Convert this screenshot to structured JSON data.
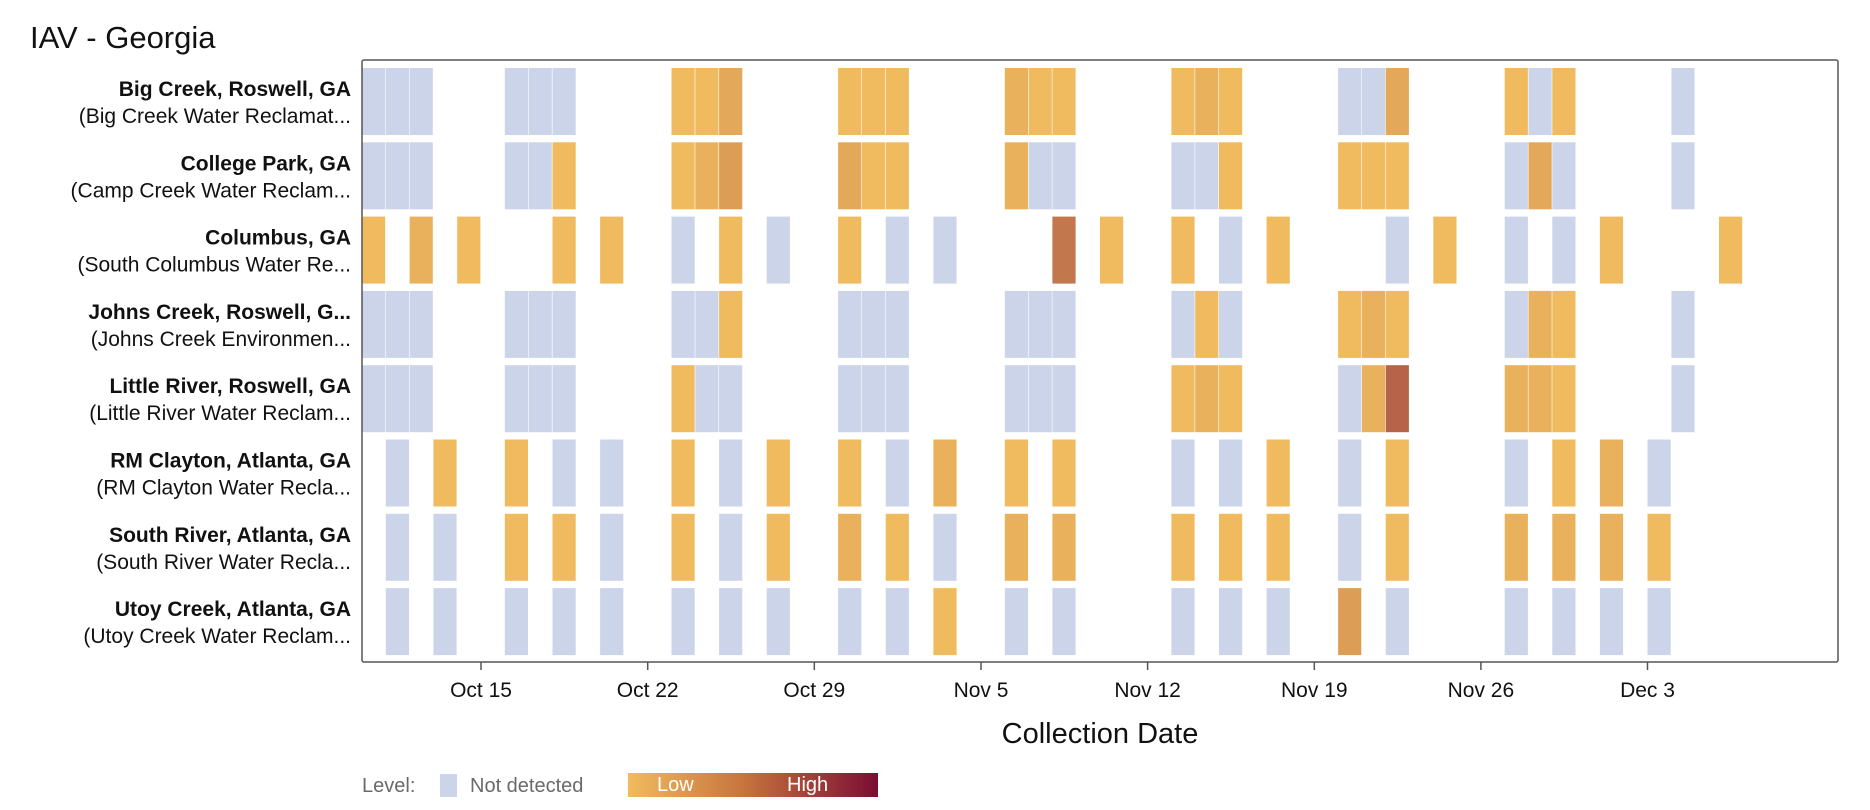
{
  "title": "IAV - Georgia",
  "legend": {
    "label": "Level:",
    "not_detected": "Not detected",
    "low": "Low",
    "high": "High"
  },
  "colors": {
    "not_detected": "#ccd4ea",
    "low": "#f0bb5e",
    "high": "#7a0d33",
    "frame": "#555555"
  },
  "chart_data": {
    "type": "heatmap",
    "title": "IAV - Georgia",
    "xlabel": "Collection Date",
    "ylabel": "",
    "x_range": [
      "2023-10-10",
      "2023-12-11"
    ],
    "x_ticks": [
      {
        "date": "2023-10-15",
        "label": "Oct 15"
      },
      {
        "date": "2023-10-22",
        "label": "Oct 22"
      },
      {
        "date": "2023-10-29",
        "label": "Oct 29"
      },
      {
        "date": "2023-11-05",
        "label": "Nov 5"
      },
      {
        "date": "2023-11-12",
        "label": "Nov 12"
      },
      {
        "date": "2023-11-19",
        "label": "Nov 19"
      },
      {
        "date": "2023-11-26",
        "label": "Nov 26"
      },
      {
        "date": "2023-12-03",
        "label": "Dec 3"
      }
    ],
    "level_scale": {
      "not_detected": "Not detected",
      "low": "Low",
      "high": "High"
    },
    "sites": [
      {
        "name": "Big Creek, Roswell, GA",
        "plant": "(Big Creek Water Reclamat...",
        "samples": [
          [
            "2023-10-10",
            null
          ],
          [
            "2023-10-11",
            null
          ],
          [
            "2023-10-12",
            null
          ],
          [
            "2023-10-16",
            null
          ],
          [
            "2023-10-17",
            null
          ],
          [
            "2023-10-18",
            null
          ],
          [
            "2023-10-23",
            0.1
          ],
          [
            "2023-10-24",
            0.1
          ],
          [
            "2023-10-25",
            0.2
          ],
          [
            "2023-10-30",
            0.1
          ],
          [
            "2023-10-31",
            0.1
          ],
          [
            "2023-11-01",
            0.1
          ],
          [
            "2023-11-06",
            0.15
          ],
          [
            "2023-11-07",
            0.1
          ],
          [
            "2023-11-08",
            0.1
          ],
          [
            "2023-11-13",
            0.1
          ],
          [
            "2023-11-14",
            0.15
          ],
          [
            "2023-11-15",
            0.1
          ],
          [
            "2023-11-20",
            null
          ],
          [
            "2023-11-21",
            null
          ],
          [
            "2023-11-22",
            0.2
          ],
          [
            "2023-11-27",
            0.1
          ],
          [
            "2023-11-28",
            null
          ],
          [
            "2023-11-29",
            0.1
          ],
          [
            "2023-12-04",
            null
          ]
        ]
      },
      {
        "name": "College Park, GA",
        "plant": "(Camp Creek Water Reclam...",
        "samples": [
          [
            "2023-10-10",
            null
          ],
          [
            "2023-10-11",
            null
          ],
          [
            "2023-10-12",
            null
          ],
          [
            "2023-10-16",
            null
          ],
          [
            "2023-10-17",
            null
          ],
          [
            "2023-10-18",
            0.1
          ],
          [
            "2023-10-23",
            0.1
          ],
          [
            "2023-10-24",
            0.15
          ],
          [
            "2023-10-25",
            0.25
          ],
          [
            "2023-10-30",
            0.2
          ],
          [
            "2023-10-31",
            0.1
          ],
          [
            "2023-11-01",
            0.1
          ],
          [
            "2023-11-06",
            0.15
          ],
          [
            "2023-11-07",
            null
          ],
          [
            "2023-11-08",
            null
          ],
          [
            "2023-11-13",
            null
          ],
          [
            "2023-11-14",
            null
          ],
          [
            "2023-11-15",
            0.1
          ],
          [
            "2023-11-20",
            0.1
          ],
          [
            "2023-11-21",
            0.1
          ],
          [
            "2023-11-22",
            0.1
          ],
          [
            "2023-11-27",
            null
          ],
          [
            "2023-11-28",
            0.2
          ],
          [
            "2023-11-29",
            null
          ],
          [
            "2023-12-04",
            null
          ]
        ]
      },
      {
        "name": "Columbus, GA",
        "plant": "(South Columbus Water Re...",
        "samples": [
          [
            "2023-10-10",
            0.1
          ],
          [
            "2023-10-12",
            0.15
          ],
          [
            "2023-10-14",
            0.1
          ],
          [
            "2023-10-18",
            0.1
          ],
          [
            "2023-10-20",
            0.1
          ],
          [
            "2023-10-23",
            null
          ],
          [
            "2023-10-25",
            0.1
          ],
          [
            "2023-10-27",
            null
          ],
          [
            "2023-10-30",
            0.1
          ],
          [
            "2023-11-01",
            null
          ],
          [
            "2023-11-03",
            null
          ],
          [
            "2023-11-08",
            0.45
          ],
          [
            "2023-11-10",
            0.1
          ],
          [
            "2023-11-13",
            0.1
          ],
          [
            "2023-11-15",
            null
          ],
          [
            "2023-11-17",
            0.1
          ],
          [
            "2023-11-22",
            null
          ],
          [
            "2023-11-24",
            0.1
          ],
          [
            "2023-11-27",
            null
          ],
          [
            "2023-11-29",
            null
          ],
          [
            "2023-12-01",
            0.1
          ],
          [
            "2023-12-06",
            0.1
          ]
        ]
      },
      {
        "name": "Johns Creek, Roswell, G...",
        "plant": "(Johns Creek Environmen...",
        "samples": [
          [
            "2023-10-10",
            null
          ],
          [
            "2023-10-11",
            null
          ],
          [
            "2023-10-12",
            null
          ],
          [
            "2023-10-16",
            null
          ],
          [
            "2023-10-17",
            null
          ],
          [
            "2023-10-18",
            null
          ],
          [
            "2023-10-23",
            null
          ],
          [
            "2023-10-24",
            null
          ],
          [
            "2023-10-25",
            0.1
          ],
          [
            "2023-10-30",
            null
          ],
          [
            "2023-10-31",
            null
          ],
          [
            "2023-11-01",
            null
          ],
          [
            "2023-11-06",
            null
          ],
          [
            "2023-11-07",
            null
          ],
          [
            "2023-11-08",
            null
          ],
          [
            "2023-11-13",
            null
          ],
          [
            "2023-11-14",
            0.1
          ],
          [
            "2023-11-15",
            null
          ],
          [
            "2023-11-20",
            0.1
          ],
          [
            "2023-11-21",
            0.15
          ],
          [
            "2023-11-22",
            0.1
          ],
          [
            "2023-11-27",
            null
          ],
          [
            "2023-11-28",
            0.15
          ],
          [
            "2023-11-29",
            0.1
          ],
          [
            "2023-12-04",
            null
          ]
        ]
      },
      {
        "name": "Little River, Roswell, GA",
        "plant": "(Little River Water Reclam...",
        "samples": [
          [
            "2023-10-10",
            null
          ],
          [
            "2023-10-11",
            null
          ],
          [
            "2023-10-12",
            null
          ],
          [
            "2023-10-16",
            null
          ],
          [
            "2023-10-17",
            null
          ],
          [
            "2023-10-18",
            null
          ],
          [
            "2023-10-23",
            0.1
          ],
          [
            "2023-10-24",
            null
          ],
          [
            "2023-10-25",
            null
          ],
          [
            "2023-10-30",
            null
          ],
          [
            "2023-10-31",
            null
          ],
          [
            "2023-11-01",
            null
          ],
          [
            "2023-11-06",
            null
          ],
          [
            "2023-11-07",
            null
          ],
          [
            "2023-11-08",
            null
          ],
          [
            "2023-11-13",
            0.1
          ],
          [
            "2023-11-14",
            0.15
          ],
          [
            "2023-11-15",
            0.1
          ],
          [
            "2023-11-20",
            null
          ],
          [
            "2023-11-21",
            0.15
          ],
          [
            "2023-11-22",
            0.55
          ],
          [
            "2023-11-27",
            0.15
          ],
          [
            "2023-11-28",
            0.15
          ],
          [
            "2023-11-29",
            0.1
          ],
          [
            "2023-12-04",
            null
          ]
        ]
      },
      {
        "name": "RM Clayton, Atlanta, GA",
        "plant": "(RM Clayton Water Recla...",
        "samples": [
          [
            "2023-10-11",
            null
          ],
          [
            "2023-10-13",
            0.1
          ],
          [
            "2023-10-16",
            0.1
          ],
          [
            "2023-10-18",
            null
          ],
          [
            "2023-10-20",
            null
          ],
          [
            "2023-10-23",
            0.1
          ],
          [
            "2023-10-25",
            null
          ],
          [
            "2023-10-27",
            0.1
          ],
          [
            "2023-10-30",
            0.1
          ],
          [
            "2023-11-01",
            null
          ],
          [
            "2023-11-03",
            0.15
          ],
          [
            "2023-11-06",
            0.1
          ],
          [
            "2023-11-08",
            0.1
          ],
          [
            "2023-11-13",
            null
          ],
          [
            "2023-11-15",
            null
          ],
          [
            "2023-11-17",
            0.1
          ],
          [
            "2023-11-20",
            null
          ],
          [
            "2023-11-22",
            0.1
          ],
          [
            "2023-11-27",
            null
          ],
          [
            "2023-11-29",
            0.1
          ],
          [
            "2023-12-01",
            0.15
          ],
          [
            "2023-12-03",
            null
          ]
        ]
      },
      {
        "name": "South River, Atlanta, GA",
        "plant": "(South River Water Recla...",
        "samples": [
          [
            "2023-10-11",
            null
          ],
          [
            "2023-10-13",
            null
          ],
          [
            "2023-10-16",
            0.1
          ],
          [
            "2023-10-18",
            0.1
          ],
          [
            "2023-10-20",
            null
          ],
          [
            "2023-10-23",
            0.1
          ],
          [
            "2023-10-25",
            null
          ],
          [
            "2023-10-27",
            0.1
          ],
          [
            "2023-10-30",
            0.15
          ],
          [
            "2023-11-01",
            0.1
          ],
          [
            "2023-11-03",
            null
          ],
          [
            "2023-11-06",
            0.15
          ],
          [
            "2023-11-08",
            0.15
          ],
          [
            "2023-11-13",
            0.1
          ],
          [
            "2023-11-15",
            0.1
          ],
          [
            "2023-11-17",
            0.1
          ],
          [
            "2023-11-20",
            null
          ],
          [
            "2023-11-22",
            0.1
          ],
          [
            "2023-11-27",
            0.15
          ],
          [
            "2023-11-29",
            0.15
          ],
          [
            "2023-12-01",
            0.15
          ],
          [
            "2023-12-03",
            0.1
          ]
        ]
      },
      {
        "name": "Utoy Creek, Atlanta, GA",
        "plant": "(Utoy Creek Water Reclam...",
        "samples": [
          [
            "2023-10-11",
            null
          ],
          [
            "2023-10-13",
            null
          ],
          [
            "2023-10-16",
            null
          ],
          [
            "2023-10-18",
            null
          ],
          [
            "2023-10-20",
            null
          ],
          [
            "2023-10-23",
            null
          ],
          [
            "2023-10-25",
            null
          ],
          [
            "2023-10-27",
            null
          ],
          [
            "2023-10-30",
            null
          ],
          [
            "2023-11-01",
            null
          ],
          [
            "2023-11-03",
            0.1
          ],
          [
            "2023-11-06",
            null
          ],
          [
            "2023-11-08",
            null
          ],
          [
            "2023-11-13",
            null
          ],
          [
            "2023-11-15",
            null
          ],
          [
            "2023-11-17",
            null
          ],
          [
            "2023-11-20",
            0.25
          ],
          [
            "2023-11-22",
            null
          ],
          [
            "2023-11-27",
            null
          ],
          [
            "2023-11-29",
            null
          ],
          [
            "2023-12-01",
            null
          ],
          [
            "2023-12-03",
            null
          ]
        ]
      }
    ]
  }
}
